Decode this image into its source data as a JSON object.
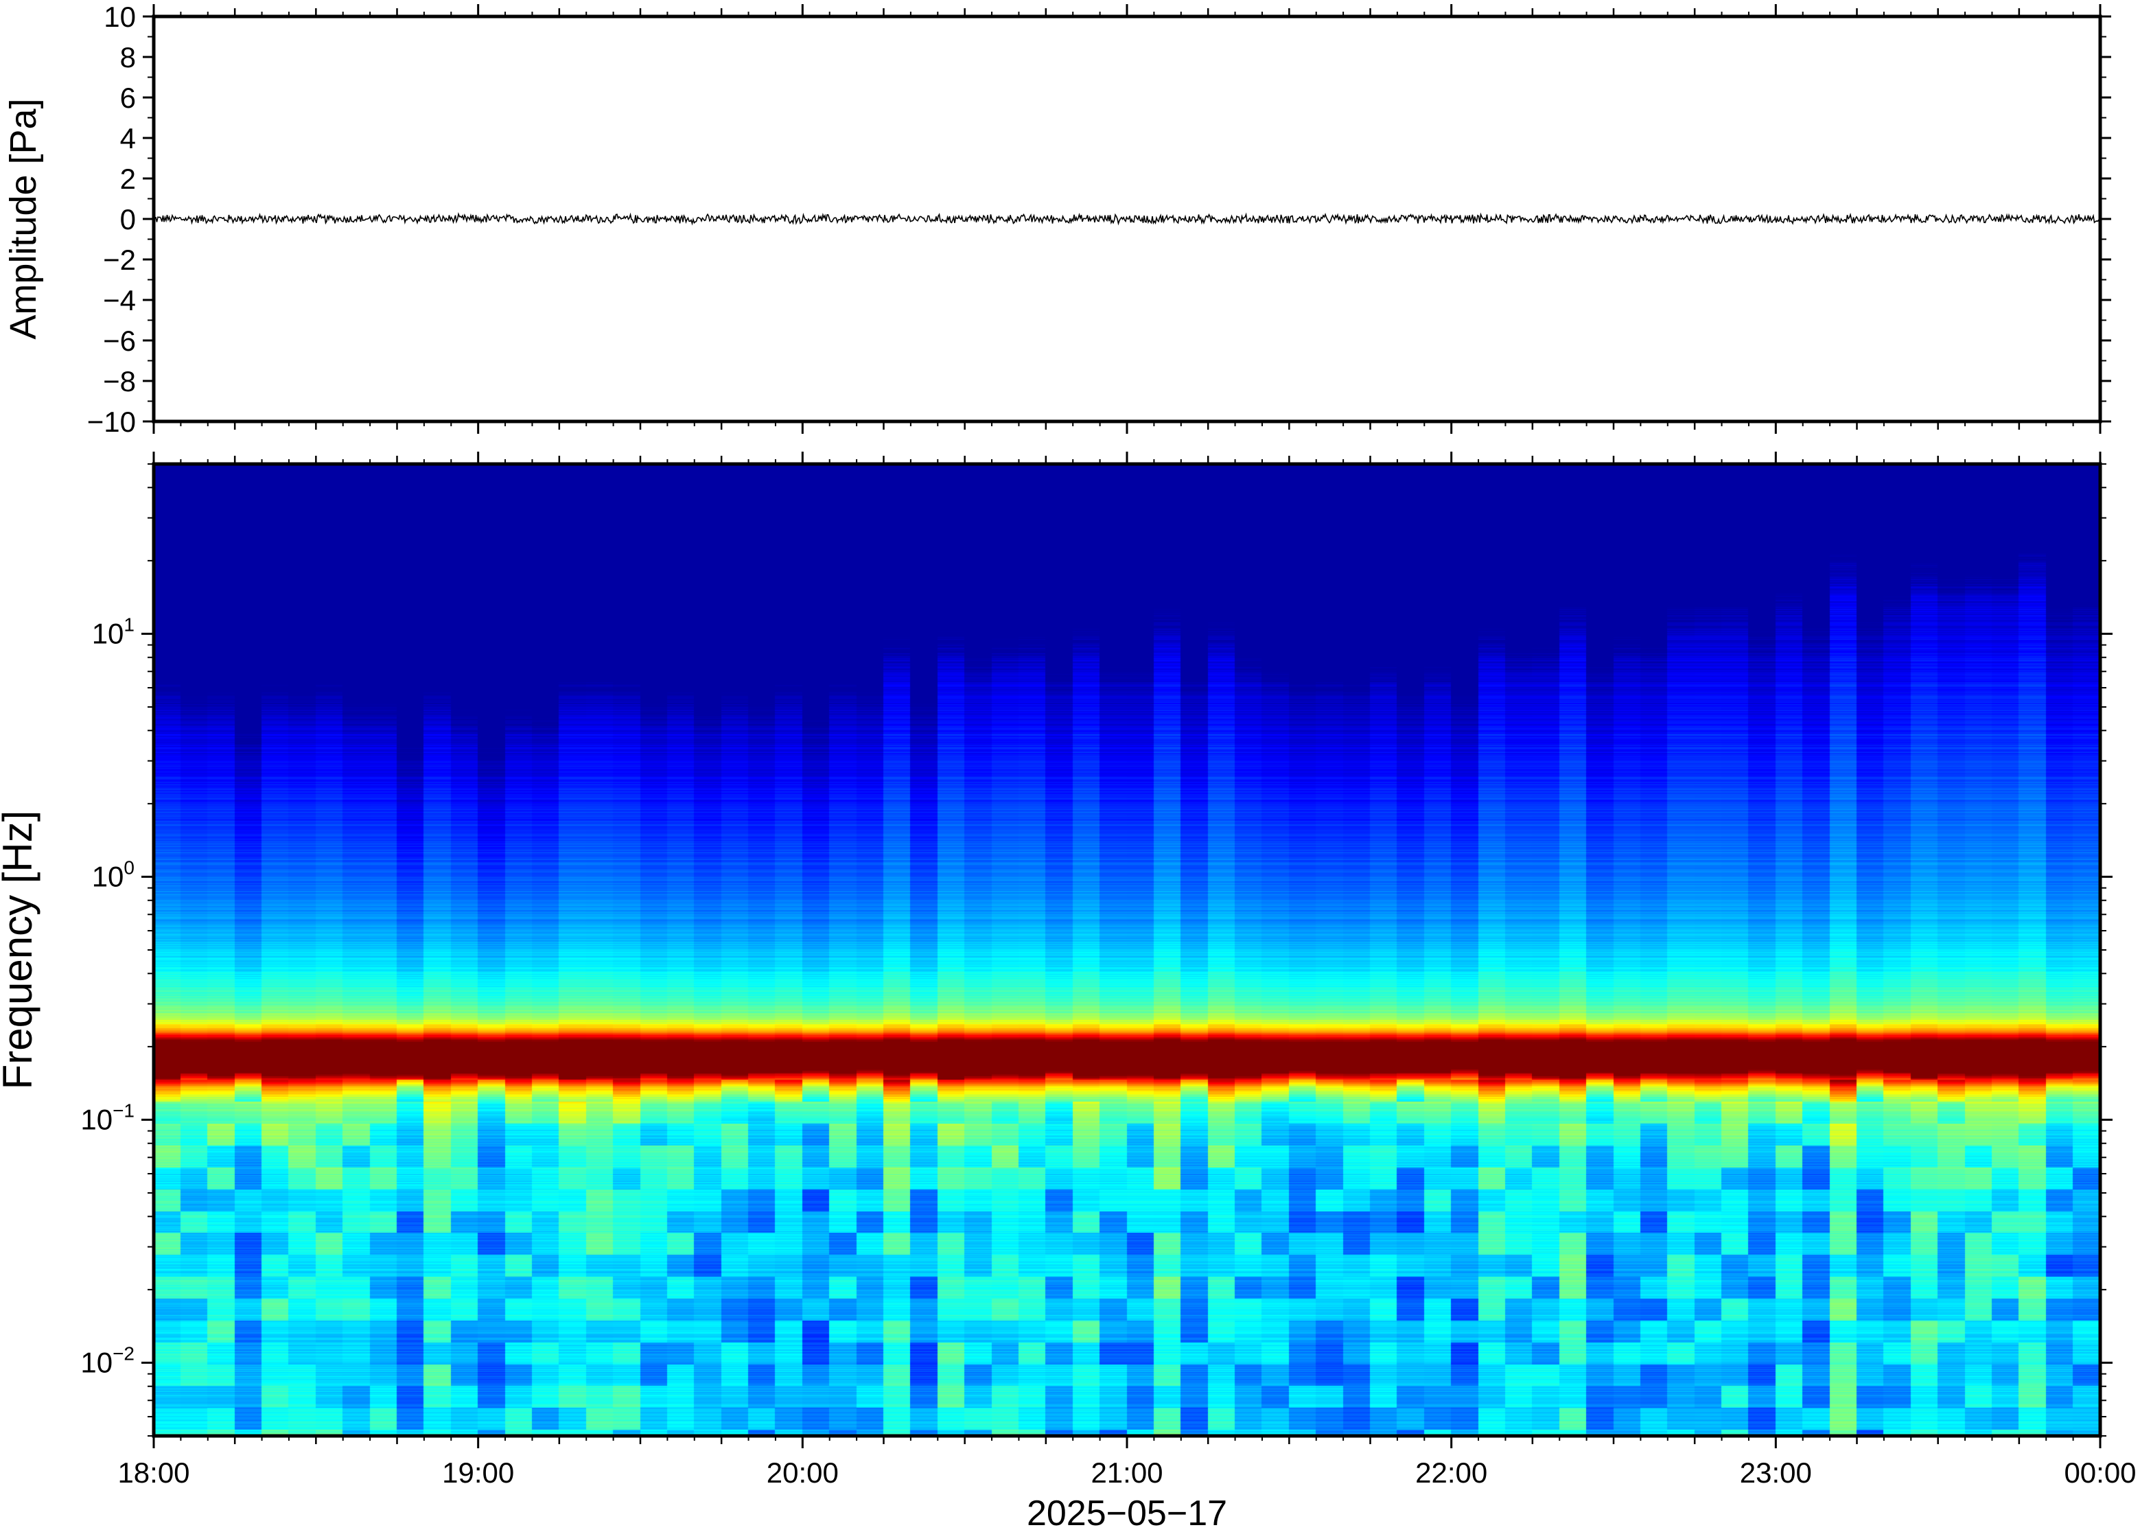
{
  "chart_data": [
    {
      "type": "line",
      "panel": "waveform",
      "ylabel": "Amplitude [Pa]",
      "ylim": [
        -10,
        10
      ],
      "yticks": [
        "10",
        "8",
        "6",
        "4",
        "2",
        "0",
        "−2",
        "−4",
        "−6",
        "−8",
        "−10"
      ],
      "ytick_values": [
        10,
        8,
        6,
        4,
        2,
        0,
        -2,
        -4,
        -6,
        -8,
        -10
      ],
      "xlim": [
        "2025-05-17T18:00",
        "2025-05-18T00:00"
      ],
      "series": [
        {
          "trace_amplitude_range": [
            -0.25,
            0.25
          ],
          "baseline": 0
        }
      ],
      "grid": false,
      "line_color": "#000000"
    },
    {
      "type": "heatmap",
      "panel": "spectrogram",
      "ylabel": "Frequency [Hz]",
      "yscale": "log",
      "ylim": [
        0.005,
        50
      ],
      "ytick_values": [
        0.01,
        0.1,
        1,
        10
      ],
      "yticks": [
        {
          "base": "10",
          "exp": "−2"
        },
        {
          "base": "10",
          "exp": "−1"
        },
        {
          "base": "10",
          "exp": "0"
        },
        {
          "base": "10",
          "exp": "1"
        }
      ],
      "xlim": [
        "2025-05-17T18:00",
        "2025-05-18T00:00"
      ],
      "xticks": [
        "18:00",
        "19:00",
        "20:00",
        "21:00",
        "22:00",
        "23:00",
        "00:00"
      ],
      "xlabel": "2025−05−17",
      "colormap": "jet",
      "energy_peak_frequency_hz": 0.18,
      "upper_energy_edge_hz_by_hour": {
        "18:00": 4,
        "19:00": 3.5,
        "20:00": 5,
        "21:00": 7,
        "22:00": 6,
        "23:00": 11,
        "00:00": 13
      },
      "grid": false
    }
  ]
}
